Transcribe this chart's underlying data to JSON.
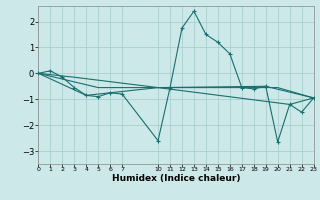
{
  "xlabel": "Humidex (Indice chaleur)",
  "background_color": "#cce8e8",
  "grid_color": "#aacece",
  "line_color": "#1a6e6e",
  "series": [
    {
      "x": [
        0,
        1,
        2,
        3,
        4,
        5,
        6,
        7,
        10,
        11,
        12,
        13,
        14,
        15,
        16,
        17,
        18,
        19,
        20,
        21,
        22,
        23
      ],
      "y": [
        0.0,
        0.1,
        -0.15,
        -0.55,
        -0.85,
        -0.9,
        -0.75,
        -0.8,
        -2.6,
        -0.55,
        1.75,
        2.4,
        1.5,
        1.2,
        0.75,
        -0.55,
        -0.6,
        -0.5,
        -2.65,
        -1.2,
        -1.5,
        -0.95
      ]
    },
    {
      "x": [
        0,
        3,
        10,
        19,
        23
      ],
      "y": [
        0.0,
        -0.15,
        -0.55,
        -0.5,
        -0.95
      ]
    },
    {
      "x": [
        0,
        5,
        10,
        20,
        23
      ],
      "y": [
        0.0,
        -0.55,
        -0.55,
        -0.55,
        -0.95
      ]
    },
    {
      "x": [
        0,
        4,
        10,
        21,
        23
      ],
      "y": [
        0.0,
        -0.85,
        -0.55,
        -1.2,
        -0.95
      ]
    }
  ],
  "xlim": [
    0,
    23
  ],
  "ylim": [
    -3.5,
    2.6
  ],
  "yticks": [
    -3,
    -2,
    -1,
    0,
    1,
    2
  ],
  "xtick_positions": [
    0,
    1,
    2,
    3,
    4,
    5,
    6,
    7,
    10,
    11,
    12,
    13,
    14,
    15,
    16,
    17,
    18,
    19,
    20,
    21,
    22,
    23
  ],
  "xtick_labels": [
    "0",
    "1",
    "2",
    "3",
    "4",
    "5",
    "6",
    "7",
    "10",
    "11",
    "12",
    "13",
    "14",
    "15",
    "16",
    "17",
    "18",
    "19",
    "20",
    "21",
    "22",
    "23"
  ]
}
